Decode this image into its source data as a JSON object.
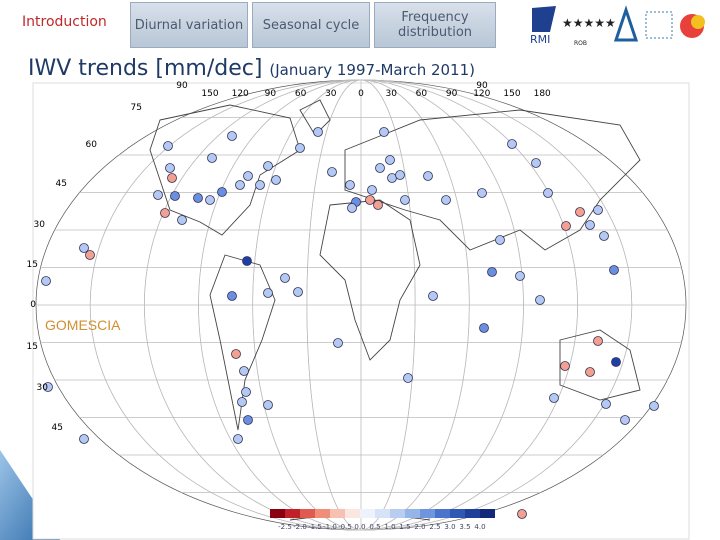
{
  "nav": {
    "active": "Introduction",
    "tabs": [
      "Diurnal variation",
      "Seasonal cycle",
      "Frequency distribution"
    ]
  },
  "logos": {
    "rmi": "RMI",
    "rob": "ROB"
  },
  "title": "IWV trends [mm/dec]",
  "subtitle": "(January 1997-March 2011)",
  "map": {
    "label": "GOMESCIA",
    "pole_labels": [
      "90",
      "90"
    ],
    "lon_labels": [
      "150",
      "120",
      "90",
      "60",
      "30",
      "0",
      "30",
      "60",
      "90",
      "120",
      "150",
      "180"
    ],
    "lat_labels": [
      "75",
      "60",
      "45",
      "30",
      "15",
      "0",
      "15",
      "30",
      "45"
    ],
    "colorbar_labels": [
      "-2.5",
      "-2.0",
      "-1.5",
      "-1.0",
      "-0.5",
      "0.0",
      "0.5",
      "1.0",
      "1.5",
      "2.0",
      "2.5",
      "3.0",
      "3.5",
      "4.0"
    ]
  }
}
